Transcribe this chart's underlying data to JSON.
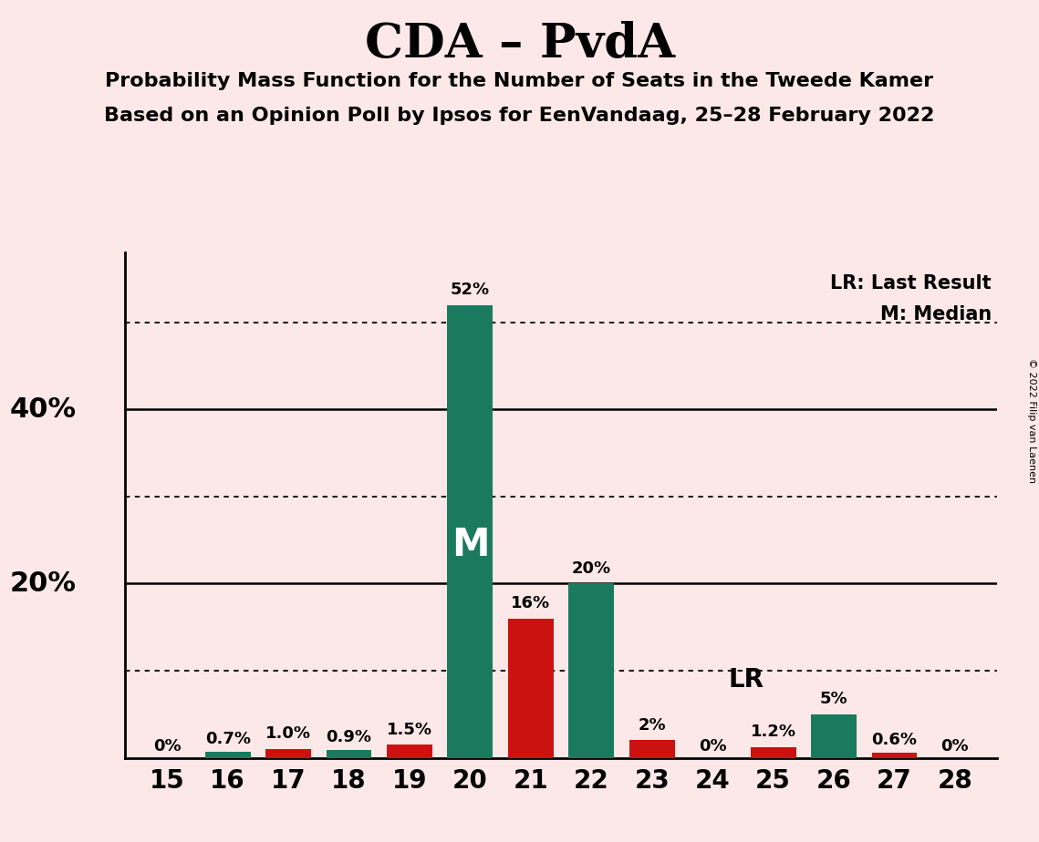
{
  "title": "CDA – PvdA",
  "subtitle1": "Probability Mass Function for the Number of Seats in the Tweede Kamer",
  "subtitle2": "Based on an Opinion Poll by Ipsos for EenVandaag, 25–28 February 2022",
  "copyright": "© 2022 Filip van Laenen",
  "legend_lr": "LR: Last Result",
  "legend_m": "M: Median",
  "background_color": "#fce8e8",
  "axes_background_color": "#fce8e8",
  "green_color": "#1a7a5e",
  "red_color": "#cc1111",
  "seats": [
    15,
    16,
    17,
    18,
    19,
    20,
    21,
    22,
    23,
    24,
    25,
    26,
    27,
    28
  ],
  "values": [
    0.0,
    0.7,
    1.0,
    0.9,
    1.5,
    52.0,
    16.0,
    20.0,
    2.0,
    0.0,
    1.2,
    5.0,
    0.6,
    0.0
  ],
  "colors": [
    "#1a7a5e",
    "#1a7a5e",
    "#cc1111",
    "#1a7a5e",
    "#cc1111",
    "#1a7a5e",
    "#cc1111",
    "#1a7a5e",
    "#cc1111",
    "#1a7a5e",
    "#cc1111",
    "#1a7a5e",
    "#cc1111",
    "#cc1111"
  ],
  "labels": [
    "0%",
    "0.7%",
    "1.0%",
    "0.9%",
    "1.5%",
    "52%",
    "16%",
    "20%",
    "2%",
    "0%",
    "1.2%",
    "5%",
    "0.6%",
    "0%"
  ],
  "median_seat": 20,
  "lr_seat": 24,
  "ylim": [
    0,
    58
  ],
  "dotted_lines": [
    10,
    30,
    50
  ],
  "solid_lines": [
    20,
    40
  ]
}
